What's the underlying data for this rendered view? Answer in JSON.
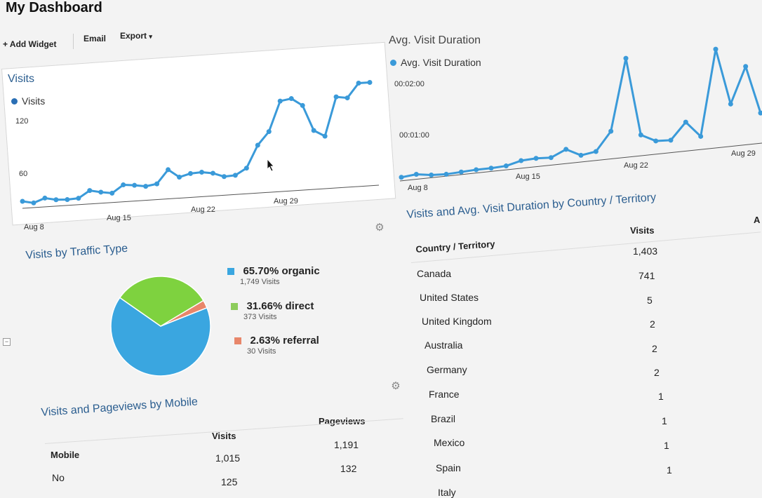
{
  "page": {
    "title": "My Dashboard"
  },
  "toolbar": {
    "add_widget": "+ Add Widget",
    "email": "Email",
    "export": "Export",
    "export_caret": "▾"
  },
  "visits_chart": {
    "title": "Visits",
    "legend": "Visits",
    "series_color": "#3a9ad9",
    "y_ticks": [
      "120",
      "60"
    ],
    "x_ticks": [
      "Aug 8",
      "Aug 15",
      "Aug 22",
      "Aug 29"
    ]
  },
  "duration_chart": {
    "title": "Avg. Visit Duration",
    "legend": "Avg. Visit Duration",
    "series_color": "#3a9ad9",
    "y_ticks": [
      "00:02:00",
      "00:01:00"
    ],
    "x_ticks": [
      "Aug 8",
      "Aug 15",
      "Aug 22",
      "Aug 29"
    ]
  },
  "traffic": {
    "title": "Visits by Traffic Type",
    "items": [
      {
        "pct": "65.70% organic",
        "sub": "1,749 Visits",
        "color": "#3aa6e0"
      },
      {
        "pct": "31.66% direct",
        "sub": "373 Visits",
        "color": "#7ed23f"
      },
      {
        "pct": "2.63% referral",
        "sub": "30 Visits",
        "color": "#e8866a"
      }
    ]
  },
  "mobile": {
    "title": "Visits and Pageviews by Mobile",
    "col_mobile": "Mobile",
    "col_visits": "Visits",
    "col_pageviews": "Pageviews",
    "rows": [
      {
        "visits": "1,015",
        "pageviews": "1,191"
      },
      {
        "mobile": "No",
        "visits": "125",
        "pageviews": "132"
      }
    ]
  },
  "country": {
    "title": "Visits and Avg. Visit Duration by Country / Territory",
    "col_country": "Country / Territory",
    "col_visits": "Visits",
    "col_avg": "A",
    "rows": [
      {
        "visits": "1,403"
      },
      {
        "country": "Canada",
        "visits": "741"
      },
      {
        "country": "United States",
        "visits": "5"
      },
      {
        "country": "United Kingdom",
        "visits": "2"
      },
      {
        "country": "Australia",
        "visits": "2"
      },
      {
        "country": "Germany",
        "visits": "2"
      },
      {
        "country": "France",
        "visits": "1"
      },
      {
        "country": "Brazil",
        "visits": "1"
      },
      {
        "country": "Mexico",
        "visits": "1"
      },
      {
        "country": "Spain",
        "visits": "1"
      },
      {
        "country": "Italy"
      }
    ]
  },
  "chart_data": [
    {
      "type": "line",
      "title": "Visits",
      "x_ticks": [
        "Aug 8",
        "Aug 15",
        "Aug 22",
        "Aug 29"
      ],
      "series": [
        {
          "name": "Visits",
          "values": [
            12,
            8,
            15,
            11,
            10,
            11,
            23,
            19,
            16,
            29,
            27,
            24,
            27,
            50,
            36,
            41,
            42,
            39,
            32,
            33,
            44,
            82,
            104,
            155,
            158,
            145,
            101,
            90,
            156,
            153,
            177,
            177
          ]
        }
      ]
    },
    {
      "type": "line",
      "title": "Avg. Visit Duration",
      "x_ticks": [
        "Aug 8",
        "Aug 15",
        "Aug 22",
        "Aug 29"
      ],
      "series": [
        {
          "name": "Avg. Visit Duration",
          "values": [
            3,
            5,
            2,
            1,
            2,
            3,
            3,
            4,
            9,
            10,
            9,
            18,
            8,
            11,
            36,
            131,
            27,
            17,
            16,
            38,
            17,
            131,
            56,
            104,
            40
          ]
        }
      ]
    }
  ]
}
